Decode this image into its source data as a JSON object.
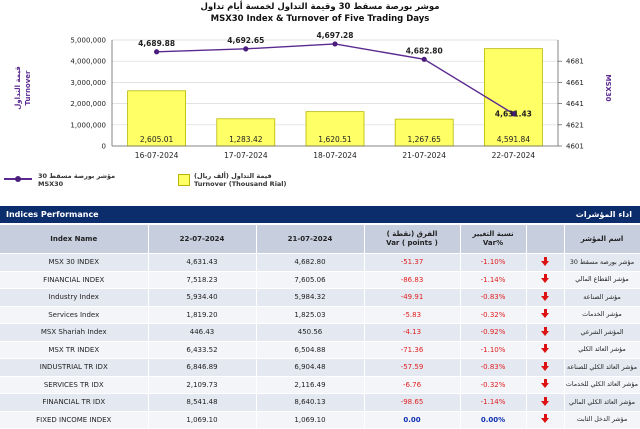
{
  "chart": {
    "title_ar": "موشر بورصة مسقط 30 وقيمة التداول لخمسة أيام تداول",
    "title_en": "MSX30 Index & Turnover of Five Trading Days",
    "y_left_label_ar": "قيمة التداول",
    "y_left_label_en": "Turnover",
    "y_right_label": "MSX30",
    "legend": {
      "index_ar": "مؤشر بورصة مسقط 30",
      "index_en": "MSX30",
      "turnover_ar": "قيمة التداول (ألف ريال)",
      "turnover_en": "Turnover (Thousand Rial)"
    },
    "colors": {
      "bar": "#ffff66",
      "bar_edge": "#b8b800",
      "line": "#5b2a91",
      "marker": "#4b1e7e",
      "grid": "#d8d8d8"
    }
  },
  "chart_data": {
    "type": "bar",
    "categories": [
      "16-07-2024",
      "17-07-2024",
      "18-07-2024",
      "21-07-2024",
      "22-07-2024"
    ],
    "series": [
      {
        "name": "Turnover (Thousand Rial)",
        "type": "bar",
        "axis": "left",
        "values": [
          2605.01,
          1283.42,
          1620.51,
          1267.65,
          4591.84
        ],
        "labels": [
          "2,605.01",
          "1,283.42",
          "1,620.51",
          "1,267.65",
          "4,591.84"
        ]
      },
      {
        "name": "MSX30",
        "type": "line",
        "axis": "right",
        "values": [
          4689.88,
          4692.65,
          4697.28,
          4682.8,
          4631.43
        ],
        "labels": [
          "4,689.88",
          "4,692.65",
          "4,697.28",
          "4,682.80",
          "4,631.43"
        ]
      }
    ],
    "y_left": {
      "ylim": [
        0,
        5000000
      ],
      "ticks": [
        "0",
        "1,000,000",
        "2,000,000",
        "3,000,000",
        "4,000,000",
        "5,000,000"
      ]
    },
    "y_right": {
      "ylim": [
        4601,
        4701
      ],
      "ticks": [
        "4601",
        "4621",
        "4641",
        "4661",
        "4681"
      ]
    },
    "grid": true,
    "legend": "bottom-left"
  },
  "indices": {
    "title_en": "Indices Performance",
    "title_ar": "اداء المؤشرات",
    "headers": {
      "index": "Index Name",
      "date1": "22-07-2024",
      "date2": "21-07-2024",
      "var_ar": "الفرق (نقطة )",
      "var_en": "Var ( points )",
      "pct_ar": "نسبة التغيير",
      "pct_en": "Var%",
      "name_ar": "اسم المؤشر"
    },
    "rows": [
      {
        "name": "MSX 30 INDEX",
        "v1": "4,631.43",
        "v2": "4,682.80",
        "var": "-51.37",
        "pct": "-1.10%",
        "dir": "down",
        "ar": "مؤشر بورصة مسقط 30"
      },
      {
        "name": "FINANCIAL INDEX",
        "v1": "7,518.23",
        "v2": "7,605.06",
        "var": "-86.83",
        "pct": "-1.14%",
        "dir": "down",
        "ar": "مؤشر القطاع المالي"
      },
      {
        "name": "Industry Index",
        "v1": "5,934.40",
        "v2": "5,984.32",
        "var": "-49.91",
        "pct": "-0.83%",
        "dir": "down",
        "ar": "مؤشر الصناعة"
      },
      {
        "name": "Services Index",
        "v1": "1,819.20",
        "v2": "1,825.03",
        "var": "-5.83",
        "pct": "-0.32%",
        "dir": "down",
        "ar": "مؤشر الخدمات"
      },
      {
        "name": "MSX Shariah Index",
        "v1": "446.43",
        "v2": "450.56",
        "var": "-4.13",
        "pct": "-0.92%",
        "dir": "down",
        "ar": "المؤشر الشرعي"
      },
      {
        "name": "MSX TR INDEX",
        "v1": "6,433.52",
        "v2": "6,504.88",
        "var": "-71.36",
        "pct": "-1.10%",
        "dir": "down",
        "ar": "مؤشر العائد الكلي"
      },
      {
        "name": "INDUSTRIAL TR IDX",
        "v1": "6,846.89",
        "v2": "6,904.48",
        "var": "-57.59",
        "pct": "-0.83%",
        "dir": "down",
        "ar": "مؤشر العائد الكلي للصناعة"
      },
      {
        "name": "SERVICES TR IDX",
        "v1": "2,109.73",
        "v2": "2,116.49",
        "var": "-6.76",
        "pct": "-0.32%",
        "dir": "down",
        "ar": "مؤشر العائد الكلي للخدمات"
      },
      {
        "name": "FINANCIAL TR IDX",
        "v1": "8,541.48",
        "v2": "8,640.13",
        "var": "-98.65",
        "pct": "-1.14%",
        "dir": "down",
        "ar": "مؤشر العائد الكلي المالي"
      },
      {
        "name": "FIXED INCOME INDEX",
        "v1": "1,069.10",
        "v2": "1,069.10",
        "var": "0.00",
        "pct": "0.00%",
        "dir": "down",
        "ar": "مؤشر الدخل الثابت"
      }
    ]
  }
}
